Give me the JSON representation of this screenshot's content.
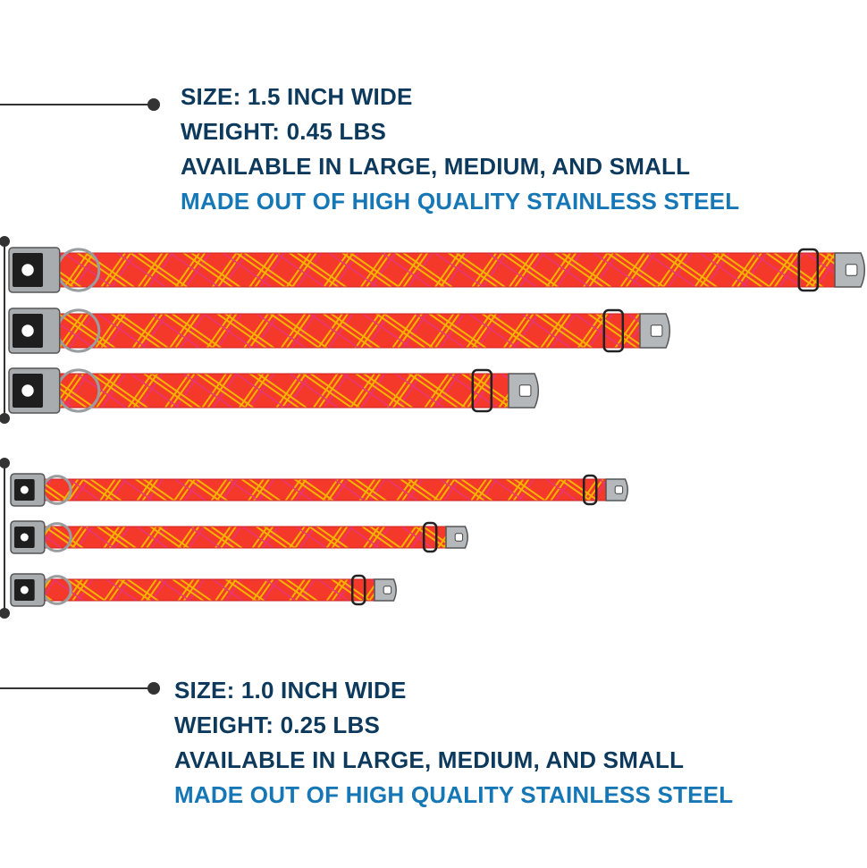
{
  "specs": [
    {
      "lines": [
        "SIZE: 1.5 INCH WIDE",
        "WEIGHT: 0.45 LBS",
        "AVAILABLE IN LARGE, MEDIUM, AND SMALL",
        "MADE OUT OF HIGH QUALITY STAINLESS STEEL"
      ]
    },
    {
      "lines": [
        "SIZE: 1.0 INCH WIDE",
        "WEIGHT: 0.25 LBS",
        "AVAILABLE IN LARGE, MEDIUM, AND SMALL",
        "MADE OUT OF HIGH QUALITY STAINLESS STEEL"
      ]
    }
  ]
}
